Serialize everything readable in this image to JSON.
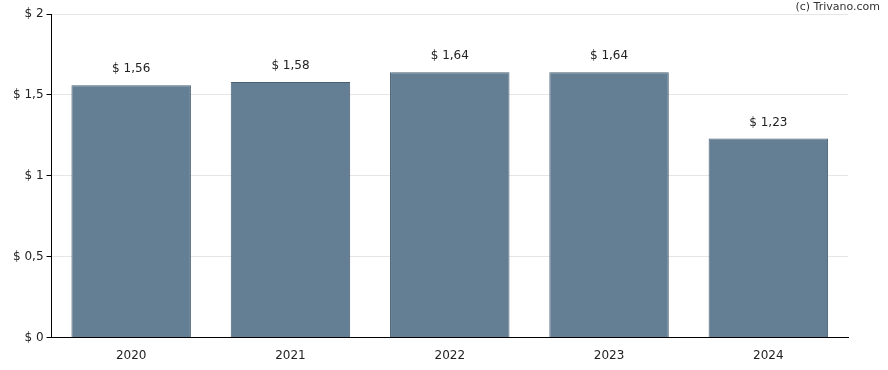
{
  "chart_data": {
    "type": "bar",
    "annotations": [
      "(c) Trivano.com"
    ],
    "categories": [
      "2020",
      "2021",
      "2022",
      "2023",
      "2024"
    ],
    "values": [
      1.56,
      1.58,
      1.64,
      1.64,
      1.23
    ],
    "value_labels": [
      "$ 1,56",
      "$ 1,58",
      "$ 1,64",
      "$ 1,64",
      "$ 1,23"
    ],
    "color": "#647f94",
    "ylim": [
      0,
      2
    ],
    "yticks": [
      {
        "value": 0,
        "label": "$ 0"
      },
      {
        "value": 0.5,
        "label": "$ 0,5"
      },
      {
        "value": 1,
        "label": "$ 1"
      },
      {
        "value": 1.5,
        "label": "$ 1,5"
      },
      {
        "value": 2,
        "label": "$ 2"
      }
    ],
    "grid": true,
    "data_labels": true
  }
}
